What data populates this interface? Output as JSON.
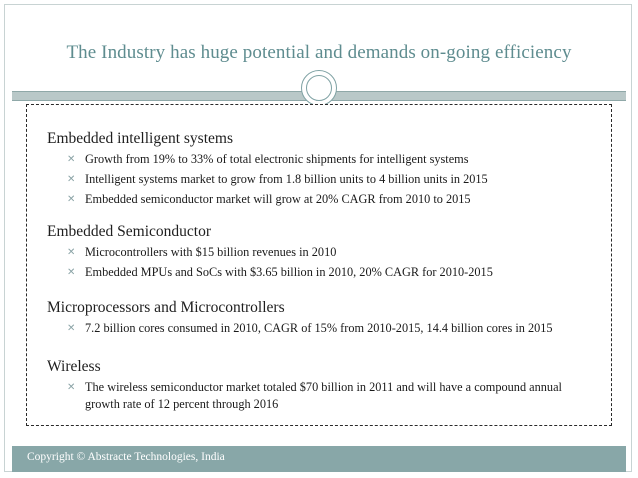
{
  "slide": {
    "title": "The Industry has huge potential and demands on-going efficiency"
  },
  "sections": [
    {
      "heading": "Embedded intelligent systems",
      "bullets": [
        "Growth from 19% to 33% of total electronic shipments for intelligent systems",
        "Intelligent systems market to grow from 1.8 billion units to 4 billion units in 2015",
        "Embedded semiconductor market will grow at 20% CAGR from 2010 to 2015"
      ]
    },
    {
      "heading": "Embedded Semiconductor",
      "bullets": [
        "Microcontrollers with $15 billion revenues in 2010",
        "Embedded MPUs and SoCs with $3.65 billion in 2010, 20% CAGR for 2010-2015"
      ]
    },
    {
      "heading": "Microprocessors and Microcontrollers",
      "bullets": [
        "7.2 billion cores consumed in 2010, CAGR of 15% from 2010-2015, 14.4 billion cores in 2015"
      ]
    },
    {
      "heading": "Wireless",
      "bullets": [
        "The wireless semiconductor market totaled $70 billion in 2011 and will have a compound annual growth rate of 12 percent through 2016"
      ]
    }
  ],
  "bullet_icon": "x-mark-icon",
  "footer": {
    "text": "Copyright © Abstracte Technologies, India"
  },
  "colors": {
    "title": "#5e8c8f",
    "band": "#b9c8c8",
    "footer": "#88a7a8",
    "bullet_mark": "#8aa3a6"
  }
}
